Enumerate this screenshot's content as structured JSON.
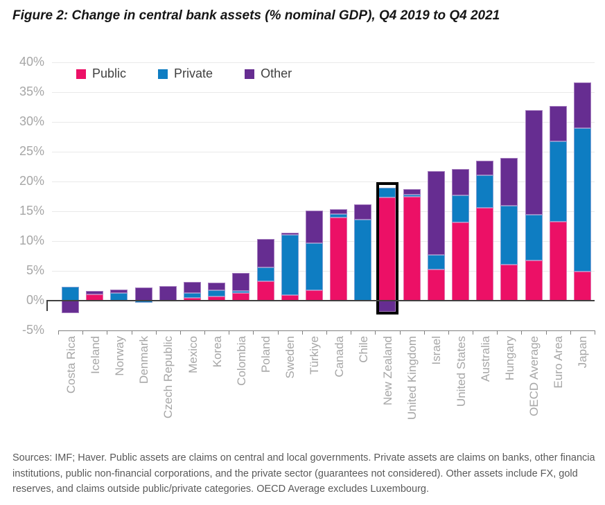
{
  "figure_title": "Figure 2: Change in central bank assets (% nominal GDP), Q4 2019 to Q4 2021",
  "chart_data": {
    "type": "bar",
    "stacked": true,
    "title": "Figure 2: Change in central bank assets (% nominal GDP), Q4 2019 to Q4 2021",
    "legend_position": "top",
    "grid": true,
    "categories": [
      "Costa Rica",
      "Iceland",
      "Norway",
      "Denmark",
      "Czech Republic",
      "Mexico",
      "Korea",
      "Colombia",
      "Poland",
      "Sweden",
      "Türkiye",
      "Canada",
      "Chile",
      "New Zealand",
      "United Kingdom",
      "Israel",
      "United States",
      "Australia",
      "Hungary",
      "OECD Average",
      "Euro Area",
      "Japan"
    ],
    "series": [
      {
        "name": "Public",
        "color": "#EC1066",
        "values": [
          0,
          1.0,
          0,
          0,
          0,
          0.5,
          0.7,
          1.3,
          3.2,
          0.9,
          1.8,
          14.0,
          0,
          17.3,
          17.4,
          5.2,
          13.1,
          15.6,
          6.0,
          6.8,
          13.3,
          4.9
        ]
      },
      {
        "name": "Private",
        "color": "#0E7DC2",
        "values": [
          2.3,
          0,
          1.3,
          -0.3,
          0,
          0.8,
          1.1,
          0.3,
          2.4,
          10.1,
          7.9,
          0.5,
          13.6,
          1.7,
          0.4,
          2.5,
          4.6,
          5.4,
          9.9,
          7.6,
          13.5,
          24.0
        ]
      },
      {
        "name": "Other",
        "color": "#662D91",
        "values": [
          -2.1,
          0.6,
          0.6,
          2.2,
          2.4,
          1.8,
          1.2,
          3.0,
          4.8,
          0.4,
          5.4,
          0.9,
          2.6,
          -1.9,
          0.9,
          14.0,
          4.4,
          2.5,
          8.1,
          17.6,
          5.9,
          7.7
        ]
      }
    ],
    "y_axis": {
      "ylim": [
        -5,
        40
      ],
      "tick_values": [
        40,
        35,
        30,
        25,
        20,
        15,
        10,
        5,
        0,
        -5
      ],
      "tick_labels": [
        "40%",
        "35%",
        "30%",
        "25%",
        "20%",
        "15%",
        "10%",
        "5%",
        "0%",
        "-5%"
      ]
    },
    "highlight_category": "New Zealand",
    "colors": {
      "zero_line": "#404040",
      "gridline": "#E9E9E9",
      "category_axis": "#7F7F7F",
      "axis_labels": "#A6A6A6",
      "legend_text": "#3F3F3F",
      "highlight_box": "#000000",
      "footnote_text": "#595959",
      "title_text": "#161616"
    }
  },
  "footnote": {
    "lines": [
      "Sources: IMF; Haver. Public assets are claims on central and local governments. Private assets are claims on banks, other financia",
      "institutions, public non-financial corporations, and the private sector (guarantees not considered). Other assets include FX, gold",
      "reserves, and claims outside public/private categories. OECD Average excludes Luxembourg."
    ]
  }
}
